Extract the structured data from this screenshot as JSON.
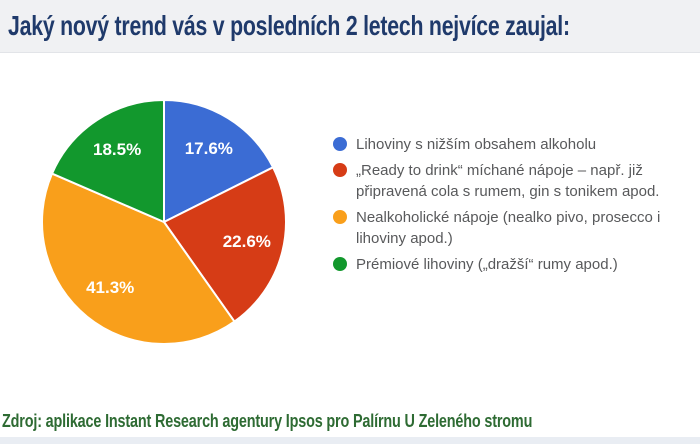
{
  "title": "Jaký nový trend vás v posledních 2 letech nejvíce zaujal:",
  "source_note": "Zdroj: aplikace Instant Research agentury Ipsos pro Palírnu U Zeleného stromu",
  "colors": {
    "title_text": "#1f3a6b",
    "footer_text": "#2e6b33",
    "legend_text": "#58595b",
    "header_band": "#f0f1f3",
    "slice_label_text": "#ffffff"
  },
  "chart_data": {
    "type": "pie",
    "title": "Jaký nový trend vás v posledních 2 letech nejvíce zaujal:",
    "legend_position": "right",
    "start_angle_deg": 0,
    "direction": "clockwise",
    "slices": [
      {
        "label": "Lihoviny s nižším obsahem alkoholu",
        "value": 17.6,
        "display": "17.6%",
        "color": "#3b6cd4"
      },
      {
        "label": "„Ready to drink“ míchané nápoje – např. již připravená cola s rumem, gin s tonikem apod.",
        "value": 22.6,
        "display": "22.6%",
        "color": "#d63c16"
      },
      {
        "label": "Nealkoholické nápoje (nealko pivo, prosecco i lihoviny apod.)",
        "value": 41.3,
        "display": "41.3%",
        "color": "#f99f1b"
      },
      {
        "label": "Prémiové lihoviny („dražší“ rumy apod.)",
        "value": 18.5,
        "display": "18.5%",
        "color": "#12982d"
      }
    ]
  }
}
